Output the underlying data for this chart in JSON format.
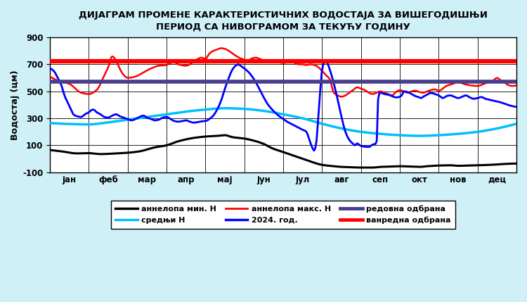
{
  "title": "ДИЈАГРАМ ПРОМЕНЕ КАРАКТЕРИСТИЧНИХ ВОДОСТАЈА ЗА ВИШЕГОДИШЊИ\nПЕРИОД СА НИВОГРАМОМ ЗА ТЕКУЋУ ГОДИНУ",
  "ylabel": "Водостај (цм)",
  "ylim": [
    -100,
    900
  ],
  "yticks": [
    -100,
    100,
    300,
    500,
    700,
    900
  ],
  "months": [
    "јан",
    "феб",
    "мар",
    "апр",
    "мај",
    "јун",
    "јул",
    "авг",
    "сеп",
    "окт",
    "нов",
    "дец"
  ],
  "background_color": "#d0f0f8",
  "plot_background": "#ffffff",
  "redovna_odbrana": 570,
  "vanredna_odbrana": 725,
  "legend": {
    "annelopa_min": "аннелопа мин. Н",
    "srednji": "средњи Н",
    "annelopa_max": "аннелопа макс. Н",
    "year2024": "2024. год.",
    "redovna": "редовна одбрана",
    "vanredna": "ванредна одбрана"
  },
  "colors": {
    "annelopa_min": "#000000",
    "srednji": "#00bfff",
    "annelopa_max": "#ff0000",
    "year2024": "#0000ff",
    "redovna": "#483d8b",
    "vanredna": "#ff0000"
  }
}
